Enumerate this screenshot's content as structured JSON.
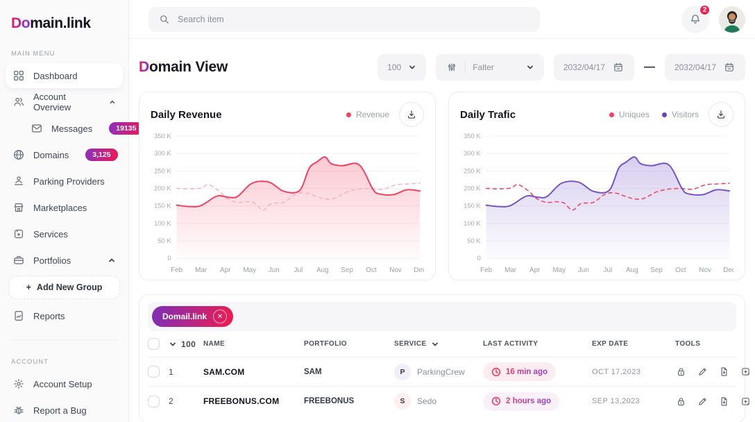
{
  "brand": {
    "logo_prefix": "Do",
    "logo_suffix": "main.link"
  },
  "topbar": {
    "search_placeholder": "Search item",
    "notification_count": "2"
  },
  "sidebar": {
    "section_main": "MAIN MENU",
    "section_account": "ACCOUNT",
    "items": [
      {
        "label": "Dashboard"
      },
      {
        "label": "Account Overview"
      },
      {
        "label": "Messages",
        "badge": "19135"
      },
      {
        "label": "Domains",
        "badge": "3,125"
      },
      {
        "label": "Parking Providers"
      },
      {
        "label": "Marketplaces"
      },
      {
        "label": "Services"
      },
      {
        "label": "Portfolios"
      },
      {
        "label": "Add New Group",
        "plus": "+"
      },
      {
        "label": "Reports"
      }
    ],
    "account_items": [
      {
        "label": "Account Setup"
      },
      {
        "label": "Report a Bug"
      }
    ]
  },
  "page": {
    "title_prefix": "D",
    "title_suffix": "omain View",
    "per_page": "100",
    "filter_label": "Falter",
    "date_from": "2032/04/17",
    "date_separator": "—",
    "date_to": "2032/04/17"
  },
  "chart_data": [
    {
      "type": "line",
      "title": "Daily Revenue",
      "legend": [
        {
          "label": "Revenue",
          "color": "#f43f5e"
        }
      ],
      "categories": [
        "Feb",
        "Mar",
        "Apr",
        "May",
        "Jun",
        "Jul",
        "Aug",
        "Sep",
        "Oct",
        "Nov",
        "Dec"
      ],
      "ytick_labels": [
        "350 K",
        "300 K",
        "250 K",
        "200 K",
        "150 K",
        "100 K",
        "50 K",
        "0"
      ],
      "ylim": [
        0,
        350
      ],
      "unit": "K",
      "grid": true,
      "legend_position": "top-right",
      "series": [
        {
          "name": "Revenue",
          "color": "#f43f5e",
          "style": "solid",
          "area_fill": true,
          "points": [
            [
              0,
              152
            ],
            [
              0.55,
              148
            ],
            [
              1,
              151
            ],
            [
              1.65,
              178
            ],
            [
              2.1,
              175
            ],
            [
              2.5,
              177
            ],
            [
              3.1,
              215
            ],
            [
              3.8,
              218
            ],
            [
              4.4,
              192
            ],
            [
              5.05,
              194
            ],
            [
              5.45,
              258
            ],
            [
              5.75,
              275
            ],
            [
              6.1,
              290
            ],
            [
              6.35,
              271
            ],
            [
              6.8,
              265
            ],
            [
              7.5,
              268
            ],
            [
              8.05,
              200
            ],
            [
              8.3,
              185
            ],
            [
              8.9,
              182
            ],
            [
              9.45,
              196
            ],
            [
              10,
              193
            ]
          ]
        },
        {
          "name": "Revenue comparison (dashed)",
          "color": "#f7b2c3",
          "style": "dashed",
          "area_fill": false,
          "points": [
            [
              0,
              200
            ],
            [
              0.5,
              199
            ],
            [
              1,
              201
            ],
            [
              1.3,
              211
            ],
            [
              1.7,
              195
            ],
            [
              2.1,
              170
            ],
            [
              2.5,
              160
            ],
            [
              2.9,
              162
            ],
            [
              3.2,
              158
            ],
            [
              3.55,
              138
            ],
            [
              3.9,
              157
            ],
            [
              4.4,
              160
            ],
            [
              4.9,
              184
            ],
            [
              5.3,
              187
            ],
            [
              5.7,
              178
            ],
            [
              6.1,
              170
            ],
            [
              6.5,
              172
            ],
            [
              7,
              190
            ],
            [
              7.5,
              198
            ],
            [
              8,
              200
            ],
            [
              8.5,
              198
            ],
            [
              9,
              210
            ],
            [
              9.5,
              213
            ],
            [
              10,
              215
            ]
          ]
        }
      ]
    },
    {
      "type": "line",
      "title": "Daily Trafic",
      "legend": [
        {
          "label": "Uniques",
          "color": "#f43f5e"
        },
        {
          "label": "Visitors",
          "color": "#6d3fc0"
        }
      ],
      "categories": [
        "Feb",
        "Mar",
        "Apr",
        "May",
        "Jun",
        "Jul",
        "Aug",
        "Sep",
        "Oct",
        "Nov",
        "Dec"
      ],
      "ytick_labels": [
        "350 K",
        "300 K",
        "250 K",
        "200 K",
        "150 K",
        "100 K",
        "50 K",
        "0"
      ],
      "ylim": [
        0,
        350
      ],
      "unit": "K",
      "grid": true,
      "legend_position": "top-right",
      "series": [
        {
          "name": "Visitors",
          "color": "#7452c8",
          "style": "solid",
          "area_fill": true,
          "points": [
            [
              0,
              152
            ],
            [
              0.55,
              148
            ],
            [
              1,
              151
            ],
            [
              1.65,
              178
            ],
            [
              2.1,
              175
            ],
            [
              2.5,
              177
            ],
            [
              3.1,
              215
            ],
            [
              3.8,
              218
            ],
            [
              4.4,
              192
            ],
            [
              5.05,
              194
            ],
            [
              5.45,
              258
            ],
            [
              5.75,
              275
            ],
            [
              6.1,
              290
            ],
            [
              6.35,
              271
            ],
            [
              6.8,
              265
            ],
            [
              7.5,
              268
            ],
            [
              8.05,
              200
            ],
            [
              8.3,
              185
            ],
            [
              8.9,
              182
            ],
            [
              9.45,
              196
            ],
            [
              10,
              193
            ]
          ]
        },
        {
          "name": "Uniques",
          "color": "#f04664",
          "style": "dashed",
          "area_fill": false,
          "points": [
            [
              0,
              200
            ],
            [
              0.5,
              199
            ],
            [
              1,
              201
            ],
            [
              1.3,
              211
            ],
            [
              1.7,
              195
            ],
            [
              2.1,
              170
            ],
            [
              2.5,
              160
            ],
            [
              2.9,
              162
            ],
            [
              3.2,
              158
            ],
            [
              3.55,
              138
            ],
            [
              3.9,
              157
            ],
            [
              4.4,
              160
            ],
            [
              4.9,
              184
            ],
            [
              5.3,
              187
            ],
            [
              5.7,
              178
            ],
            [
              6.1,
              170
            ],
            [
              6.5,
              172
            ],
            [
              7,
              190
            ],
            [
              7.5,
              198
            ],
            [
              8,
              200
            ],
            [
              8.5,
              198
            ],
            [
              9,
              210
            ],
            [
              9.5,
              213
            ],
            [
              10,
              215
            ]
          ]
        }
      ]
    }
  ],
  "table": {
    "tag": {
      "label": "Domail.link"
    },
    "page_size": "100",
    "columns": {
      "name": "NAME",
      "portfolio": "PORTFOLIO",
      "service": "SERVICE",
      "last_activity": "LAST ACTIVITY",
      "exp_date": "EXP DATE",
      "tools": "TOOLS"
    },
    "tool_icons": [
      "lock",
      "edit",
      "file-download",
      "add-note"
    ],
    "rows": [
      {
        "num": "1",
        "name": "SAM.COM",
        "portfolio": "SAM",
        "service_initial": "P",
        "service": "ParkingCrew",
        "activity": "16 min ago",
        "exp": "OCT 17,2023",
        "initial_bg": "#f3eefc",
        "pill_bg": "#fdedf1"
      },
      {
        "num": "2",
        "name": "FREEBONUS.COM",
        "portfolio": "FREEBONUS",
        "service_initial": "S",
        "service": "Sedo",
        "activity": "2 hours ago",
        "exp": "SEP 13,2023",
        "initial_bg": "#fdeef0",
        "pill_bg": "#f9f0fa"
      }
    ]
  },
  "colors": {
    "accent_red": "#f0254f",
    "accent_purple": "#7b3fe4",
    "badge_gradient_start": "#8d2fc0",
    "badge_gradient_end": "#ee1a52",
    "sidebar_bg": "#fafafb",
    "revenue_line": "#f43f5e",
    "visitors_line": "#7452c8"
  }
}
